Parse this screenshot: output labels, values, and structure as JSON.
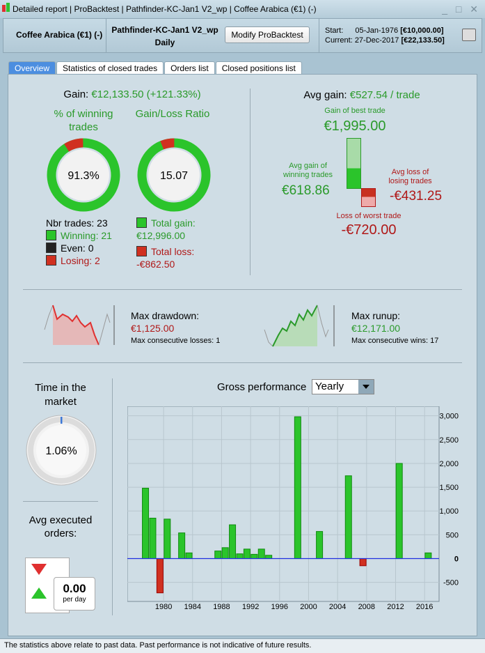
{
  "titlebar": {
    "title": "Detailed report | ProBacktest | Pathfinder-KC-Jan1 V2_wp | Coffee Arabica (€1) (-)",
    "controls": "_ □ ✕"
  },
  "header": {
    "instrument": "Coffee Arabica (€1) (-)",
    "strategy": "Pathfinder-KC-Jan1 V2_wp",
    "timeframe": "Daily",
    "modify_button": "Modify ProBacktest",
    "start_label": "Start:",
    "start_date": "05-Jan-1976",
    "start_value": "[€10,000.00]",
    "current_label": "Current:",
    "current_date": "27-Dec-2017",
    "current_value": "[€22,133.50]"
  },
  "tabs": [
    {
      "label": "Overview"
    },
    {
      "label": "Statistics of closed trades"
    },
    {
      "label": "Orders list"
    },
    {
      "label": "Closed positions list"
    }
  ],
  "gain": {
    "label": "Gain:",
    "value": "€12,133.50 (+121.33%)"
  },
  "winning": {
    "title": "% of winning trades",
    "value": "91.3%",
    "fraction": 0.913
  },
  "ratio": {
    "title": "Gain/Loss Ratio",
    "value": "15.07"
  },
  "trades": {
    "nbr": "Nbr trades: 23",
    "winning": "Winning: 21",
    "even": "Even: 0",
    "losing": "Losing: 2"
  },
  "totals": {
    "gain_label": "Total gain:",
    "gain": "€12,996.00",
    "loss_label": "Total loss:",
    "loss": "-€862.50"
  },
  "avg": {
    "label": "Avg gain:",
    "value": "€527.54 / trade",
    "best_label": "Gain of best trade",
    "best": "€1,995.00",
    "avg_win_label": "Avg gain of winning trades",
    "avg_win": "€618.86",
    "avg_loss_label": "Avg loss of losing trades",
    "avg_loss": "-€431.25",
    "worst_label": "Loss of worst trade",
    "worst": "-€720.00"
  },
  "drawdown": {
    "label": "Max drawdown:",
    "value": "€1,125.00",
    "sub": "Max consecutive losses: 1"
  },
  "runup": {
    "label": "Max runup:",
    "value": "€12,171.00",
    "sub": "Max consecutive wins: 17"
  },
  "market": {
    "title": "Time in the market",
    "value": "1.06%",
    "fraction": 0.0106
  },
  "orders": {
    "title": "Avg executed orders:",
    "value": "0.00",
    "unit": "per day"
  },
  "perf": {
    "title": "Gross performance",
    "select": "Yearly"
  },
  "footer": "The statistics above relate to past data. Past performance is not indicative of future results.",
  "colors": {
    "gain": "#2a9a2a",
    "loss": "#b01818",
    "accent": "#4c8ee0"
  },
  "chart_data": {
    "type": "bar",
    "title": "Gross performance",
    "xlim": [
      1975,
      2018
    ],
    "ylim": [
      -900,
      3200
    ],
    "xticks": [
      1980,
      1984,
      1988,
      1992,
      1996,
      2000,
      2004,
      2008,
      2012,
      2016
    ],
    "yticks": [
      {
        "v": 3000,
        "l": "3,000"
      },
      {
        "v": 2500,
        "l": "2,500"
      },
      {
        "v": 2000,
        "l": "2,000"
      },
      {
        "v": 1500,
        "l": "1,500"
      },
      {
        "v": 1000,
        "l": "1,000"
      },
      {
        "v": 500,
        "l": "500"
      },
      {
        "v": 0,
        "l": "0"
      },
      {
        "v": -500,
        "l": "-500"
      }
    ],
    "x": [
      1977,
      1978,
      1979,
      1980,
      1982,
      1983,
      1987,
      1988,
      1989,
      1990,
      1991,
      1992,
      1993,
      1994,
      1998,
      2001,
      2005,
      2007,
      2012,
      2016
    ],
    "values": [
      1480,
      850,
      -720,
      830,
      540,
      120,
      160,
      230,
      710,
      100,
      200,
      90,
      200,
      70,
      2980,
      570,
      1740,
      -150,
      2000,
      120
    ]
  }
}
